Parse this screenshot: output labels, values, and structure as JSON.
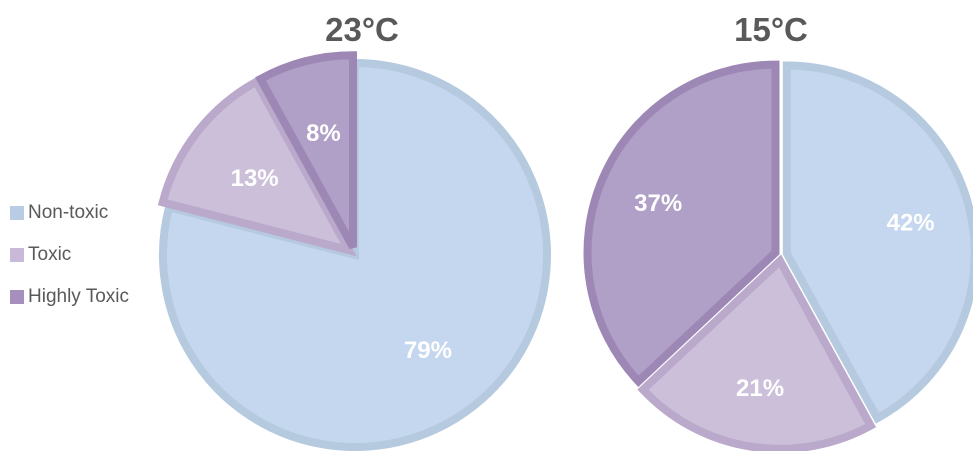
{
  "chart_data": [
    {
      "type": "pie",
      "title": "23°C",
      "categories": [
        "Non-toxic",
        "Toxic",
        "Highly Toxic"
      ],
      "values": [
        79,
        13,
        8
      ],
      "labels": [
        "79%",
        "13%",
        "8%"
      ],
      "colors": [
        "#c5d6ef",
        "#cbbfda",
        "#b09fc6"
      ],
      "border_colors": [
        "#b5c9df",
        "#baa9ca",
        "#9d88b5"
      ]
    },
    {
      "type": "pie",
      "title": "15°C",
      "categories": [
        "Non-toxic",
        "Toxic",
        "Highly Toxic"
      ],
      "values": [
        42,
        21,
        37
      ],
      "labels": [
        "42%",
        "21%",
        "37%"
      ],
      "colors": [
        "#c5d6ef",
        "#cbbfda",
        "#b09fc6"
      ],
      "border_colors": [
        "#b5c9df",
        "#baa9ca",
        "#9d88b5"
      ]
    }
  ],
  "legend": {
    "placement": "left",
    "items": [
      {
        "label": "Non-toxic",
        "color": "#b8cce4"
      },
      {
        "label": "Toxic",
        "color": "#c9b9d8"
      },
      {
        "label": "Highly Toxic",
        "color": "#a48fbd"
      }
    ]
  },
  "label_color": "#ffffff",
  "title_color": "#595959"
}
